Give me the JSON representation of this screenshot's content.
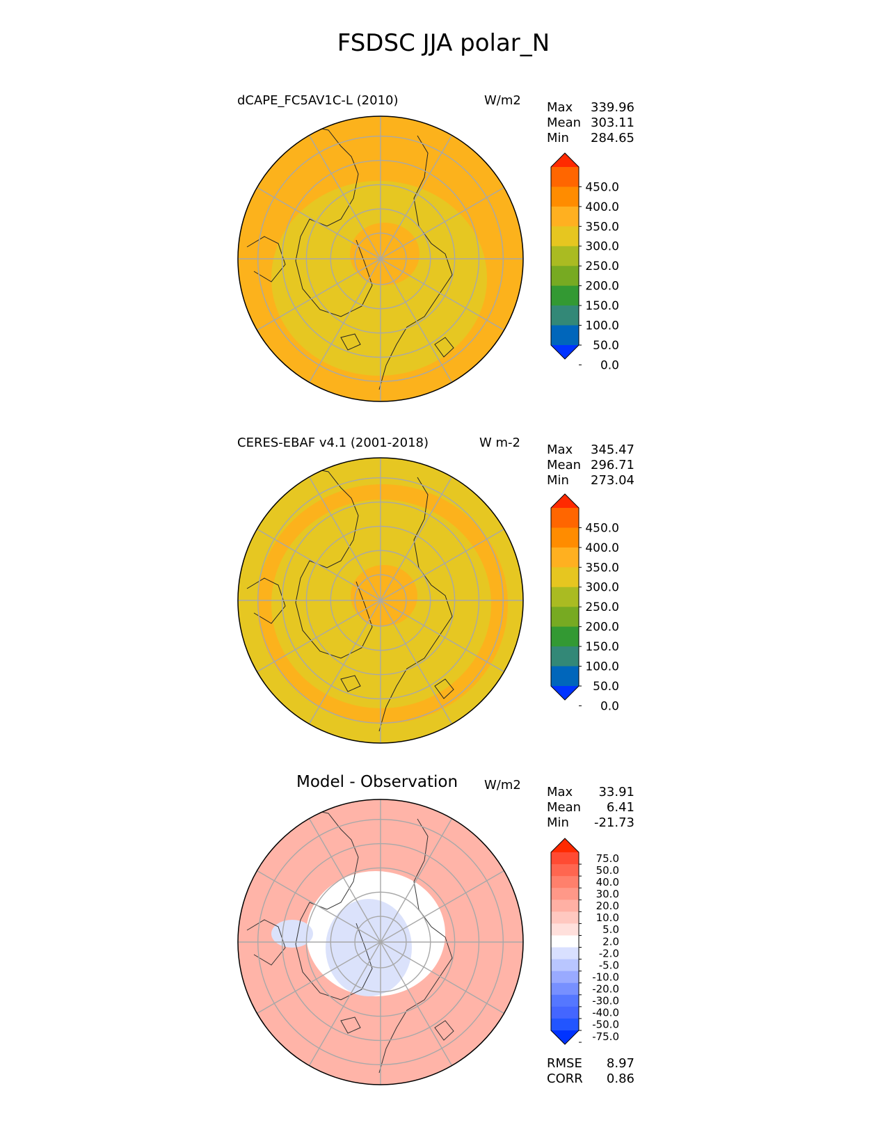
{
  "figure": {
    "title": "FSDSC JJA polar_N"
  },
  "panels": [
    {
      "name": "test",
      "title": "dCAPE_FC5AV1C-L (2010)",
      "units": "W/m2",
      "stats": [
        {
          "label": "Max",
          "value": "339.96"
        },
        {
          "label": "Mean",
          "value": "303.11"
        },
        {
          "label": "Min",
          "value": "284.65"
        }
      ],
      "colorbar": {
        "levels": [
          "450.0",
          "400.0",
          "350.0",
          "300.0",
          "250.0",
          "200.0",
          "150.0",
          "100.0",
          "50.0",
          "0.0"
        ],
        "colors": [
          "#0033ff",
          "#0066bb",
          "#338877",
          "#339933",
          "#77aa22",
          "#aabb22",
          "#e6c620",
          "#ffb020",
          "#ff8c00",
          "#ff6600",
          "#ff2a00"
        ]
      },
      "dominant_color": "#fcb21c",
      "secondary_color": "#e6c722"
    },
    {
      "name": "reference",
      "title": "CERES-EBAF v4.1 (2001-2018)",
      "units": "W m-2",
      "stats": [
        {
          "label": "Max",
          "value": "345.47"
        },
        {
          "label": "Mean",
          "value": "296.71"
        },
        {
          "label": "Min",
          "value": "273.04"
        }
      ],
      "colorbar": {
        "levels": [
          "450.0",
          "400.0",
          "350.0",
          "300.0",
          "250.0",
          "200.0",
          "150.0",
          "100.0",
          "50.0",
          "0.0"
        ],
        "colors": [
          "#0033ff",
          "#0066bb",
          "#338877",
          "#339933",
          "#77aa22",
          "#aabb22",
          "#e6c620",
          "#ffb020",
          "#ff8c00",
          "#ff6600",
          "#ff2a00"
        ]
      },
      "dominant_color": "#e6c722",
      "secondary_color": "#fcb21c"
    },
    {
      "name": "difference",
      "title": "Model - Observation",
      "units": "W/m2",
      "stats": [
        {
          "label": "Max",
          "value": "33.91"
        },
        {
          "label": "Mean",
          "value": "6.41"
        },
        {
          "label": "Min",
          "value": "-21.73"
        }
      ],
      "colorbar": {
        "levels": [
          "75.0",
          "50.0",
          "40.0",
          "30.0",
          "20.0",
          "10.0",
          "5.0",
          "2.0",
          "-2.0",
          "-5.0",
          "-10.0",
          "-20.0",
          "-30.0",
          "-40.0",
          "-50.0",
          "-75.0"
        ],
        "colors": [
          "#0033ff",
          "#2255ff",
          "#4466ff",
          "#5577ff",
          "#7790ff",
          "#99aaff",
          "#b9c6ff",
          "#d9e0ff",
          "#ffffff",
          "#ffe0dc",
          "#ffc8c0",
          "#ffb0a4",
          "#ff9888",
          "#ff806c",
          "#ff6650",
          "#ff4b33",
          "#ff2a00"
        ]
      },
      "dominant_color": "#ffb4a8",
      "secondary_color": "#dbe2fb",
      "metrics": [
        {
          "label": "RMSE",
          "value": "8.97"
        },
        {
          "label": "CORR",
          "value": "0.86"
        }
      ]
    }
  ]
}
